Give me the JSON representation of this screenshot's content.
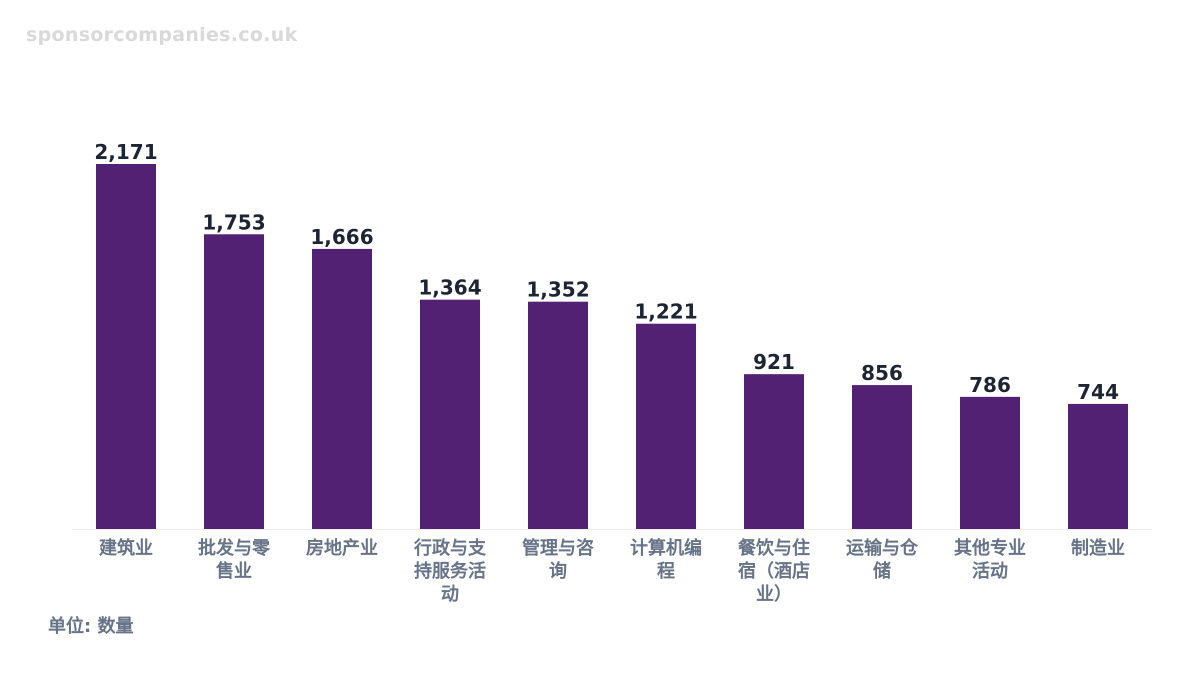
{
  "watermark": "sponsorcompanies.co.uk",
  "unit_label": "单位: 数量",
  "colors": {
    "bar": "#532173",
    "value_label": "#1d2433",
    "category_label": "#667388",
    "axis": "#eeeeee"
  },
  "chart_data": {
    "type": "bar",
    "categories": [
      [
        "建筑业"
      ],
      [
        "批发与零",
        "售业"
      ],
      [
        "房地产业"
      ],
      [
        "行政与支",
        "持服务活",
        "动"
      ],
      [
        "管理与咨",
        "询"
      ],
      [
        "计算机编",
        "程"
      ],
      [
        "餐饮与住",
        "宿（酒店",
        "业）"
      ],
      [
        "运输与仓",
        "储"
      ],
      [
        "其他专业",
        "活动"
      ],
      [
        "制造业"
      ]
    ],
    "values": [
      2171,
      1753,
      1666,
      1364,
      1352,
      1221,
      921,
      856,
      786,
      744
    ],
    "value_labels": [
      "2,171",
      "1,753",
      "1,666",
      "1,364",
      "1,352",
      "1,221",
      "921",
      "856",
      "786",
      "744"
    ],
    "ylim": [
      0,
      2171
    ],
    "grid": false,
    "legend": "none"
  }
}
